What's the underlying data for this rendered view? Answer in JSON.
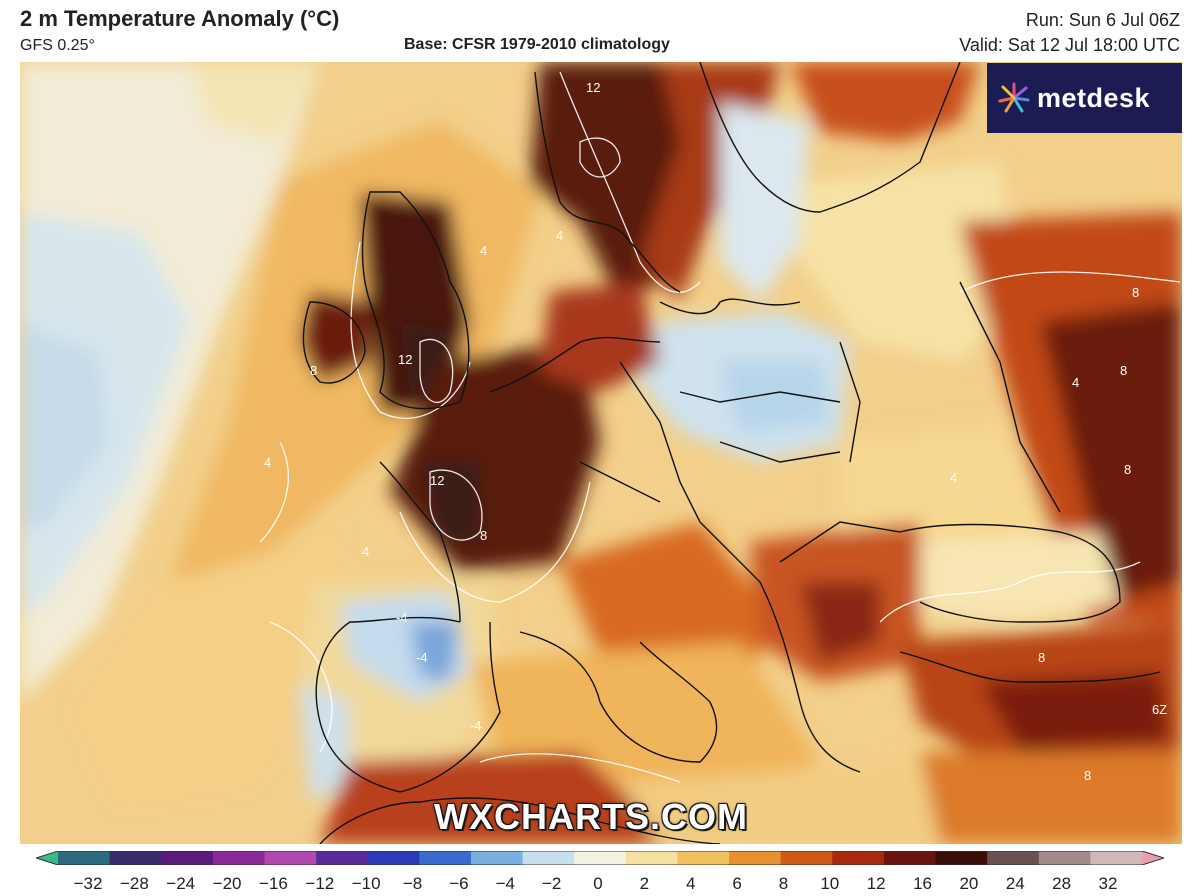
{
  "header": {
    "title": "2 m Temperature Anomaly (°C)",
    "model": "GFS 0.25°",
    "base": "Base: CFSR 1979-2010 climatology",
    "run": "Run: Sun 6 Jul 06Z",
    "valid": "Valid: Sat 12 Jul 18:00 UTC"
  },
  "logo": {
    "name": "metdesk",
    "icon": "metdesk-sunburst-icon"
  },
  "watermark": "WXCHARTS.COM",
  "map": {
    "region": "Europe",
    "contour_labels": [
      "12",
      "12",
      "12",
      "8",
      "8",
      "8",
      "8",
      "8",
      "8",
      "8",
      "4",
      "4",
      "4",
      "4",
      "4",
      "4",
      "-4",
      "-4",
      "-4",
      "6Z"
    ]
  },
  "colorbar": {
    "ticks": [
      "−32",
      "−28",
      "−24",
      "−20",
      "−16",
      "−12",
      "−10",
      "−8",
      "−6",
      "−4",
      "−2",
      "0",
      "2",
      "4",
      "6",
      "8",
      "10",
      "12",
      "16",
      "20",
      "24",
      "28",
      "32"
    ],
    "colors": [
      "#3cb88a",
      "#2c6a7e",
      "#3a2a6a",
      "#5c1a7a",
      "#8a2a9a",
      "#b04ab0",
      "#5a2a9a",
      "#2a3ab8",
      "#3a6ad0",
      "#7ab0e0",
      "#c8e0ee",
      "#f6f2e0",
      "#f6e0a0",
      "#f2c060",
      "#e89030",
      "#d05a18",
      "#a82810",
      "#6a1410",
      "#3a0e0a",
      "#6a5050",
      "#a08a8a",
      "#d0b8b8",
      "#e8a0b0"
    ]
  }
}
